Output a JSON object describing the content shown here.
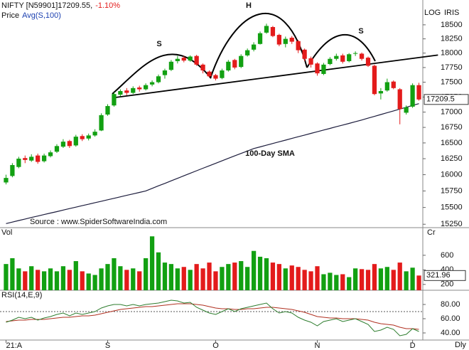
{
  "chart_data": {
    "type": "candlestick",
    "title": "NIFTY [N59901]17209.55,",
    "change": "-1.10%",
    "legend_prefix": "Price",
    "scale_label": "LOG",
    "logo": "IRIS",
    "log": true,
    "up_color": "#12a012",
    "down_color": "#e31b1b",
    "ylim": [
      15200,
      18950
    ],
    "yticks": [
      15250,
      15500,
      15750,
      16000,
      16250,
      16500,
      16750,
      17000,
      17250,
      17500,
      17750,
      18000,
      18250,
      18500
    ],
    "xticks": [
      {
        "value": 0,
        "label": "21:A"
      },
      {
        "value": 16,
        "label": "S"
      },
      {
        "value": 33,
        "label": "O"
      },
      {
        "value": 49,
        "label": "N"
      },
      {
        "value": 64,
        "label": "D"
      }
    ],
    "x_unit": "Dly",
    "last_label": "17209.5",
    "ohlc": [
      [
        15880,
        16000,
        15850,
        15950
      ],
      [
        15980,
        16180,
        15960,
        16150
      ],
      [
        16120,
        16280,
        16100,
        16250
      ],
      [
        16260,
        16300,
        16180,
        16230
      ],
      [
        16220,
        16320,
        16200,
        16280
      ],
      [
        16300,
        16330,
        16170,
        16200
      ],
      [
        16210,
        16330,
        16190,
        16300
      ],
      [
        16290,
        16380,
        16270,
        16350
      ],
      [
        16360,
        16480,
        16340,
        16450
      ],
      [
        16440,
        16560,
        16420,
        16520
      ],
      [
        16530,
        16550,
        16420,
        16450
      ],
      [
        16460,
        16630,
        16440,
        16600
      ],
      [
        16610,
        16640,
        16530,
        16560
      ],
      [
        16570,
        16650,
        16540,
        16620
      ],
      [
        16620,
        16720,
        16600,
        16680
      ],
      [
        16700,
        16980,
        16690,
        16950
      ],
      [
        16960,
        17130,
        16940,
        17100
      ],
      [
        17110,
        17330,
        17090,
        17300
      ],
      [
        17290,
        17380,
        17260,
        17350
      ],
      [
        17360,
        17400,
        17280,
        17320
      ],
      [
        17320,
        17430,
        17300,
        17400
      ],
      [
        17410,
        17440,
        17340,
        17380
      ],
      [
        17380,
        17480,
        17360,
        17450
      ],
      [
        17460,
        17530,
        17430,
        17500
      ],
      [
        17500,
        17630,
        17480,
        17600
      ],
      [
        17620,
        17730,
        17560,
        17700
      ],
      [
        17710,
        17880,
        17690,
        17850
      ],
      [
        17860,
        17950,
        17820,
        17900
      ],
      [
        17920,
        17950,
        17840,
        17870
      ],
      [
        17870,
        17960,
        17850,
        17940
      ],
      [
        17950,
        17970,
        17780,
        17800
      ],
      [
        17800,
        17820,
        17650,
        17700
      ],
      [
        17680,
        17700,
        17580,
        17600
      ],
      [
        17620,
        17640,
        17530,
        17560
      ],
      [
        17570,
        17730,
        17550,
        17700
      ],
      [
        17700,
        17880,
        17680,
        17850
      ],
      [
        17880,
        17900,
        17720,
        17750
      ],
      [
        17760,
        17980,
        17740,
        17950
      ],
      [
        17960,
        18080,
        17940,
        18050
      ],
      [
        18060,
        18190,
        18030,
        18150
      ],
      [
        18160,
        18380,
        18150,
        18350
      ],
      [
        18360,
        18520,
        18340,
        18480
      ],
      [
        18460,
        18480,
        18280,
        18300
      ],
      [
        18320,
        18340,
        18120,
        18150
      ],
      [
        18160,
        18290,
        18100,
        18250
      ],
      [
        18270,
        18300,
        18160,
        18200
      ],
      [
        18210,
        18230,
        18000,
        18050
      ],
      [
        18060,
        18080,
        17860,
        17900
      ],
      [
        17910,
        17940,
        17750,
        17800
      ],
      [
        17820,
        17840,
        17610,
        17650
      ],
      [
        17640,
        17830,
        17620,
        17800
      ],
      [
        17810,
        17930,
        17790,
        17900
      ],
      [
        17900,
        17990,
        17870,
        17950
      ],
      [
        17960,
        17990,
        17820,
        17850
      ],
      [
        17860,
        18000,
        17840,
        17980
      ],
      [
        17990,
        18030,
        17950,
        18000
      ],
      [
        17990,
        18010,
        17870,
        17900
      ],
      [
        17920,
        17940,
        17760,
        17780
      ],
      [
        17780,
        17800,
        17280,
        17300
      ],
      [
        17310,
        17400,
        17210,
        17350
      ],
      [
        17360,
        17560,
        17340,
        17500
      ],
      [
        17510,
        17530,
        17380,
        17400
      ],
      [
        17380,
        17400,
        16800,
        17050
      ],
      [
        16990,
        17110,
        16960,
        17080
      ],
      [
        17090,
        17480,
        17070,
        17450
      ],
      [
        17450,
        17490,
        17190,
        17209.55
      ]
    ],
    "sma": {
      "name": "Avg(S,100)",
      "color": "#1c1c3c",
      "values": [
        15260,
        15282,
        15305,
        15327,
        15350,
        15372,
        15394,
        15416,
        15438,
        15461,
        15483,
        15505,
        15527,
        15549,
        15572,
        15594,
        15616,
        15638,
        15660,
        15683,
        15705,
        15727,
        15750,
        15789,
        15828,
        15866,
        15905,
        15944,
        15983,
        16022,
        16061,
        16100,
        16138,
        16177,
        16216,
        16255,
        16294,
        16333,
        16371,
        16410,
        16437,
        16464,
        16491,
        16518,
        16545,
        16572,
        16599,
        16626,
        16653,
        16680,
        16707,
        16734,
        16761,
        16788,
        16815,
        16842,
        16870,
        16900,
        16930,
        16960,
        16990,
        17020,
        17050,
        17080,
        17110,
        17140
      ]
    },
    "neckline": {
      "x": [
        17,
        68
      ],
      "y": [
        17240,
        17966
      ]
    },
    "annotations": [
      "S",
      "H",
      "S",
      "100-Day SMA",
      "Source : www.SpiderSoftwareIndia.com"
    ],
    "volume": {
      "label": "Vol",
      "unit": "Cr",
      "ylim": [
        120,
        960
      ],
      "yticks": [
        200,
        400,
        600
      ],
      "values": [
        480,
        560,
        420,
        380,
        450,
        400,
        380,
        420,
        380,
        450,
        400,
        520,
        380,
        350,
        330,
        420,
        480,
        560,
        450,
        400,
        420,
        380,
        560,
        860,
        640,
        500,
        480,
        420,
        440,
        400,
        480,
        420,
        500,
        380,
        440,
        480,
        500,
        520,
        440,
        660,
        580,
        560,
        500,
        480,
        420,
        460,
        440,
        400,
        380,
        450,
        340,
        360,
        330,
        340,
        300,
        420,
        410,
        400,
        480,
        420,
        440,
        400,
        500,
        380,
        430,
        321.96
      ]
    },
    "rsi": {
      "label": "RSI(14,E,9)",
      "ylim": [
        30,
        98
      ],
      "reference": 70,
      "color": "#2e7d2e",
      "signal_color": "#b03020",
      "yticks": [
        {
          "value": 80,
          "label": "80.00"
        },
        {
          "value": 60,
          "label": "60.00"
        },
        {
          "value": 40,
          "label": "40.00"
        }
      ],
      "values": [
        55,
        58,
        62,
        60,
        62,
        58,
        61,
        63,
        66,
        68,
        64,
        68,
        66,
        68,
        70,
        75,
        78,
        80,
        80,
        78,
        80,
        78,
        80,
        81,
        82,
        84,
        86,
        85,
        82,
        83,
        76,
        72,
        68,
        66,
        70,
        74,
        70,
        74,
        76,
        78,
        80,
        82,
        74,
        68,
        70,
        68,
        62,
        58,
        55,
        50,
        56,
        58,
        60,
        56,
        58,
        60,
        56,
        52,
        42,
        44,
        48,
        45,
        36,
        38,
        46,
        42
      ],
      "signal": [
        56,
        57,
        58,
        58,
        59,
        59,
        59,
        60,
        61,
        62,
        62,
        63,
        64,
        64,
        65,
        67,
        69,
        71,
        73,
        74,
        75,
        76,
        77,
        77,
        78,
        79,
        80,
        81,
        81,
        81,
        80,
        79,
        77,
        75,
        74,
        74,
        73,
        73,
        74,
        74,
        75,
        76,
        76,
        75,
        74,
        73,
        71,
        69,
        66,
        63,
        62,
        61,
        61,
        60,
        60,
        60,
        59,
        58,
        55,
        53,
        52,
        51,
        48,
        46,
        46,
        45
      ]
    }
  }
}
